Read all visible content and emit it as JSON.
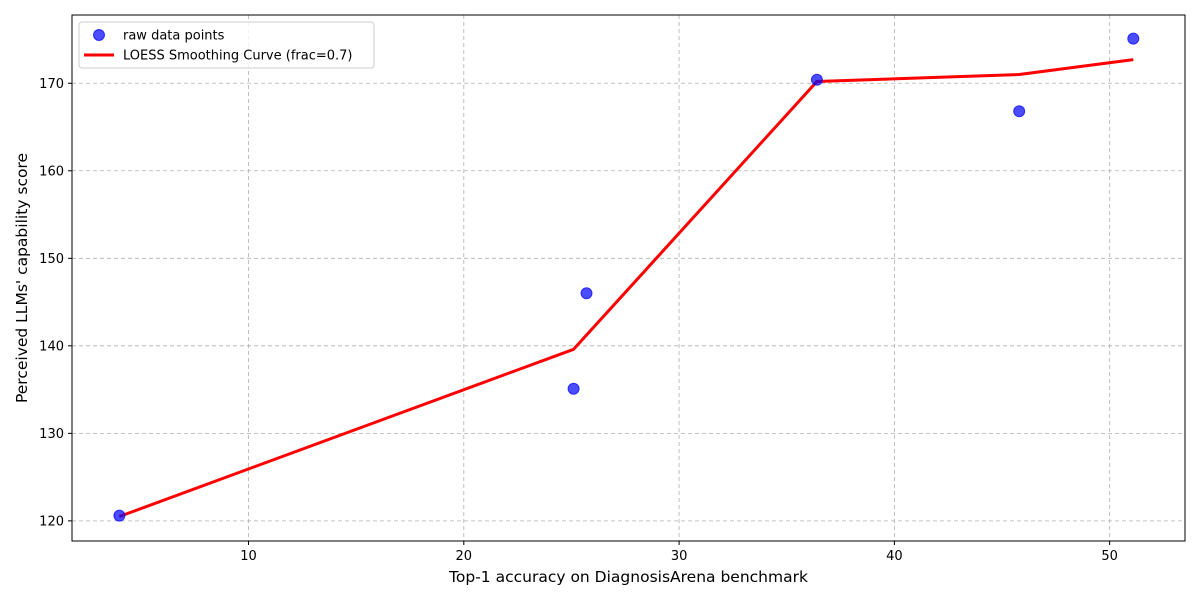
{
  "chart_data": {
    "type": "scatter",
    "xlabel": "Top-1 accuracy on DiagnosisArena benchmark",
    "ylabel": "Perceived LLMs' capability score",
    "xlim": [
      1.8,
      53.5
    ],
    "ylim": [
      117.7,
      177.8
    ],
    "xticks": [
      10,
      20,
      30,
      40,
      50
    ],
    "yticks": [
      120,
      130,
      140,
      150,
      160,
      170
    ],
    "grid": true,
    "legend_position": "upper-left",
    "series": [
      {
        "name": "raw data points",
        "kind": "scatter",
        "color": "#0000ff",
        "points": [
          {
            "x": 4.0,
            "y": 120.6
          },
          {
            "x": 25.1,
            "y": 135.1
          },
          {
            "x": 25.7,
            "y": 146.0
          },
          {
            "x": 36.4,
            "y": 170.4
          },
          {
            "x": 45.8,
            "y": 166.8
          },
          {
            "x": 51.1,
            "y": 175.1
          }
        ]
      },
      {
        "name": "LOESS Smoothing Curve (frac=0.7)",
        "kind": "line",
        "color": "#ff0000",
        "points": [
          {
            "x": 4.0,
            "y": 120.5
          },
          {
            "x": 25.1,
            "y": 139.6
          },
          {
            "x": 36.4,
            "y": 170.2
          },
          {
            "x": 45.8,
            "y": 171.0
          },
          {
            "x": 51.1,
            "y": 172.7
          }
        ]
      }
    ]
  }
}
